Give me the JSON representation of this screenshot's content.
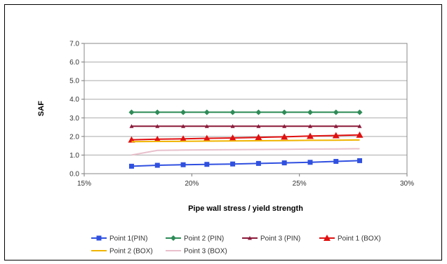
{
  "chart_data": {
    "type": "line",
    "xlabel": "Pipe wall stress / yield strength",
    "ylabel": "SAF",
    "xlim": [
      15,
      30
    ],
    "ylim": [
      0,
      7
    ],
    "x_ticks": [
      "15%",
      "20%",
      "25%",
      "30%"
    ],
    "x_tick_values": [
      15,
      20,
      25,
      30
    ],
    "y_ticks": [
      "0.0",
      "1.0",
      "2.0",
      "3.0",
      "4.0",
      "5.0",
      "6.0",
      "7.0"
    ],
    "y_tick_values": [
      0,
      1,
      2,
      3,
      4,
      5,
      6,
      7
    ],
    "grid": true,
    "legend_position": "bottom",
    "x": [
      17.2,
      18.4,
      19.6,
      20.7,
      21.9,
      23.1,
      24.3,
      25.5,
      26.7,
      27.8
    ],
    "series": [
      {
        "name": "Point 1(PIN)",
        "color": "#3050e0",
        "marker": "square",
        "values": [
          0.4,
          0.45,
          0.48,
          0.5,
          0.52,
          0.55,
          0.58,
          0.61,
          0.66,
          0.7
        ]
      },
      {
        "name": "Point 2 (PIN)",
        "color": "#2e8b57",
        "marker": "diamond",
        "values": [
          3.3,
          3.3,
          3.3,
          3.3,
          3.3,
          3.3,
          3.3,
          3.3,
          3.3,
          3.3
        ]
      },
      {
        "name": "Point 3 (PIN)",
        "color": "#8b1a3a",
        "marker": "small-triangle",
        "values": [
          2.55,
          2.55,
          2.55,
          2.55,
          2.55,
          2.55,
          2.55,
          2.55,
          2.55,
          2.55
        ]
      },
      {
        "name": "Point 1 (BOX)",
        "color": "#e01010",
        "marker": "triangle",
        "values": [
          1.82,
          1.85,
          1.87,
          1.9,
          1.92,
          1.95,
          1.98,
          2.02,
          2.05,
          2.08
        ]
      },
      {
        "name": "Point 2 (BOX)",
        "color": "#f0b400",
        "marker": "none",
        "values": [
          1.72,
          1.73,
          1.74,
          1.75,
          1.76,
          1.77,
          1.78,
          1.79,
          1.8,
          1.81
        ]
      },
      {
        "name": "Point 3 (BOX)",
        "color": "#e8c0cc",
        "marker": "none",
        "values": [
          1.0,
          1.25,
          1.27,
          1.28,
          1.29,
          1.3,
          1.31,
          1.32,
          1.33,
          1.34
        ]
      }
    ]
  }
}
